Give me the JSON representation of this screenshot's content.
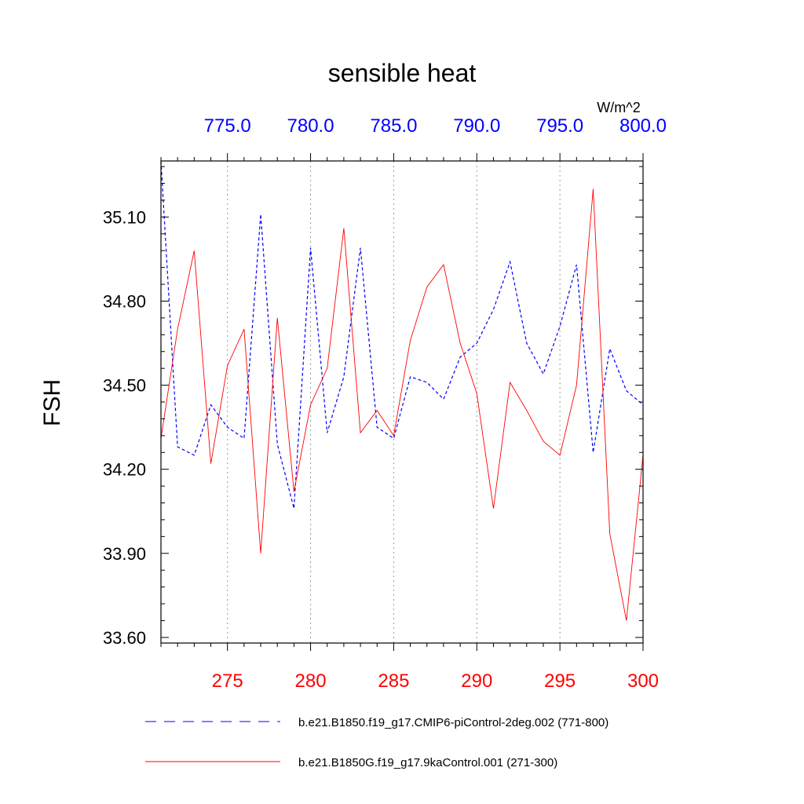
{
  "chart_data": {
    "type": "line",
    "title": "sensible heat",
    "ylabel": "FSH",
    "units": "W/m^2",
    "ylim": [
      33.58,
      35.3
    ],
    "yticks": [
      "35.10",
      "34.80",
      "34.50",
      "34.20",
      "33.90",
      "33.60"
    ],
    "grid": "vertical-dotted",
    "legend_position": "bottom",
    "series": [
      {
        "name": "b.e21.B1850.f19_g17.CMIP6-piControl-2deg.002 (771-800)",
        "axis": "top",
        "color": "#0000ff",
        "dash": "dashed",
        "xlim": [
          771,
          800
        ],
        "xticks": [
          "775.0",
          "780.0",
          "785.0",
          "790.0",
          "795.0",
          "800.0"
        ],
        "x": [
          771,
          772,
          773,
          774,
          775,
          776,
          777,
          778,
          779,
          780,
          781,
          782,
          783,
          784,
          785,
          786,
          787,
          788,
          789,
          790,
          791,
          792,
          793,
          794,
          795,
          796,
          797,
          798,
          799,
          800
        ],
        "values": [
          35.3,
          34.28,
          34.25,
          34.43,
          34.35,
          34.31,
          35.11,
          34.29,
          34.06,
          34.99,
          34.33,
          34.53,
          34.99,
          34.35,
          34.31,
          34.53,
          34.51,
          34.45,
          34.6,
          34.65,
          34.77,
          34.94,
          34.65,
          34.54,
          34.71,
          34.93,
          34.26,
          34.63,
          34.48,
          34.43
        ]
      },
      {
        "name": "b.e21.B1850G.f19_g17.9kaControl.001 (271-300)",
        "axis": "bottom",
        "color": "#ff0000",
        "dash": "solid",
        "xlim": [
          271,
          300
        ],
        "xticks": [
          "275",
          "280",
          "285",
          "290",
          "295",
          "300"
        ],
        "x": [
          271,
          272,
          273,
          274,
          275,
          276,
          277,
          278,
          279,
          280,
          281,
          282,
          283,
          284,
          285,
          286,
          287,
          288,
          289,
          290,
          291,
          292,
          293,
          294,
          295,
          296,
          297,
          298,
          299,
          300
        ],
        "values": [
          34.31,
          34.7,
          34.98,
          34.22,
          34.57,
          34.7,
          33.9,
          34.74,
          34.12,
          34.43,
          34.56,
          35.06,
          34.33,
          34.41,
          34.32,
          34.66,
          34.85,
          34.93,
          34.65,
          34.47,
          34.06,
          34.51,
          34.41,
          34.3,
          34.25,
          34.5,
          35.2,
          33.97,
          33.66,
          34.25
        ]
      }
    ]
  }
}
